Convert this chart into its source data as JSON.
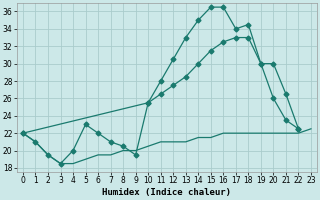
{
  "xlabel": "Humidex (Indice chaleur)",
  "bg_color": "#cce8e8",
  "grid_color": "#aacccc",
  "line_color": "#1a7a6e",
  "xlim": [
    -0.5,
    23.5
  ],
  "ylim": [
    17.5,
    37
  ],
  "xticks": [
    0,
    1,
    2,
    3,
    4,
    5,
    6,
    7,
    8,
    9,
    10,
    11,
    12,
    13,
    14,
    15,
    16,
    17,
    18,
    19,
    20,
    21,
    22,
    23
  ],
  "yticks": [
    18,
    20,
    22,
    24,
    26,
    28,
    30,
    32,
    34,
    36
  ],
  "line1_x": [
    0,
    1,
    2,
    3,
    4,
    5,
    6,
    7,
    8,
    9,
    10,
    11,
    12,
    13,
    14,
    15,
    16,
    17,
    18,
    19,
    20,
    21,
    22
  ],
  "line1_y": [
    22,
    21,
    19.5,
    18.5,
    20,
    23,
    22,
    21,
    20.5,
    19.5,
    25.5,
    28,
    30.5,
    33,
    35,
    36.5,
    36.5,
    34,
    34.5,
    30,
    26,
    23.5,
    22.5
  ],
  "line2_x": [
    0,
    10,
    11,
    12,
    13,
    14,
    15,
    16,
    17,
    18,
    19,
    20,
    21,
    22
  ],
  "line2_y": [
    22,
    25.5,
    26.5,
    27.5,
    28.5,
    30,
    31.5,
    32.5,
    33,
    33,
    30,
    30,
    26.5,
    22.5
  ],
  "line3_x": [
    0,
    1,
    2,
    3,
    4,
    5,
    6,
    7,
    8,
    9,
    10,
    11,
    12,
    13,
    14,
    15,
    16,
    17,
    18,
    19,
    20,
    21,
    22,
    23
  ],
  "line3_y": [
    22,
    21,
    19.5,
    18.5,
    18.5,
    19,
    19.5,
    19.5,
    20,
    20,
    20.5,
    21,
    21,
    21,
    21.5,
    21.5,
    22,
    22,
    22,
    22,
    22,
    22,
    22,
    22.5
  ]
}
